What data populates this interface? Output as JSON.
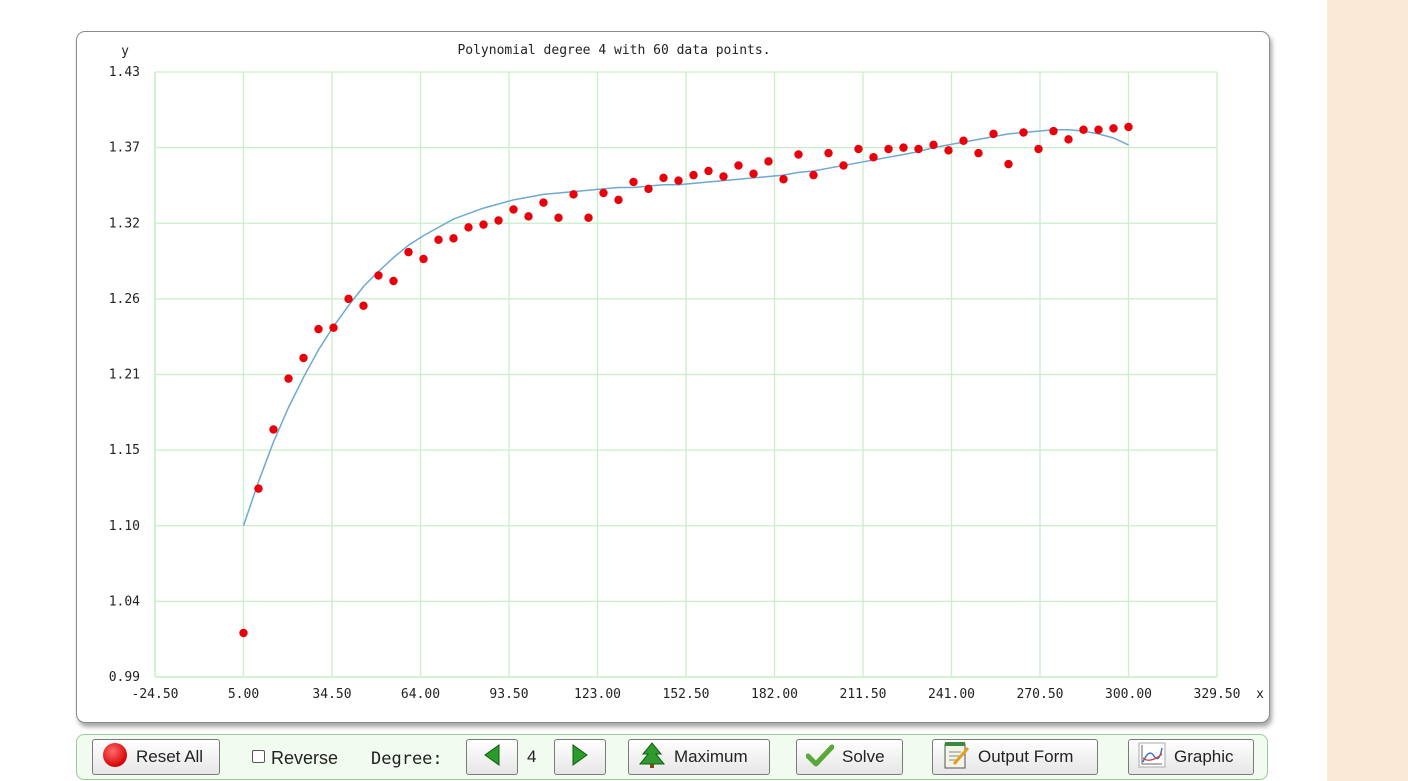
{
  "chart_data": {
    "type": "scatter",
    "title": "Polynomial degree 4 with 60 data points.",
    "xlabel": "x",
    "ylabel": "y",
    "xlim": [
      -24.5,
      329.5
    ],
    "ylim": [
      0.99,
      1.43
    ],
    "x_ticks": [
      "-24.50",
      "5.00",
      "34.50",
      "64.00",
      "93.50",
      "123.00",
      "152.50",
      "182.00",
      "211.50",
      "241.00",
      "270.50",
      "300.00",
      "329.50"
    ],
    "y_ticks": [
      "1.43",
      "1.37",
      "1.32",
      "1.26",
      "1.21",
      "1.15",
      "1.10",
      "1.04",
      "0.99"
    ],
    "grid": true,
    "points_color": "#e8000b",
    "curve_color": "#6fa8d0",
    "grid_color": "#c8efc8",
    "series": [
      {
        "marker": "point",
        "x": [
          5,
          10,
          15,
          20,
          25,
          30,
          35,
          40,
          45,
          50,
          55,
          60,
          65,
          70,
          75,
          80,
          85,
          90,
          95,
          100,
          105,
          110,
          115,
          120,
          125,
          130,
          135,
          140,
          145,
          150,
          155,
          160,
          165,
          170,
          175,
          180,
          185,
          190,
          195,
          200,
          205,
          210,
          215,
          220,
          225,
          230,
          235,
          240,
          245,
          250,
          255,
          260,
          265,
          270,
          275,
          280,
          285,
          290,
          295,
          300
        ],
        "y": [
          1.022,
          1.127,
          1.17,
          1.207,
          1.222,
          1.243,
          1.244,
          1.265,
          1.26,
          1.282,
          1.278,
          1.299,
          1.294,
          1.308,
          1.309,
          1.317,
          1.319,
          1.322,
          1.33,
          1.325,
          1.335,
          1.324,
          1.341,
          1.324,
          1.342,
          1.337,
          1.35,
          1.345,
          1.353,
          1.351,
          1.355,
          1.358,
          1.354,
          1.362,
          1.356,
          1.365,
          1.352,
          1.37,
          1.355,
          1.371,
          1.362,
          1.374,
          1.368,
          1.374,
          1.375,
          1.374,
          1.377,
          1.373,
          1.38,
          1.371,
          1.385,
          1.363,
          1.386,
          1.374,
          1.387,
          1.381,
          1.388,
          1.388,
          1.389,
          1.39
        ]
      },
      {
        "marker": "line",
        "x": [
          5,
          10,
          15,
          20,
          25,
          30,
          35,
          40,
          45,
          50,
          55,
          60,
          65,
          70,
          75,
          80,
          85,
          90,
          95,
          100,
          105,
          110,
          115,
          120,
          125,
          130,
          135,
          140,
          145,
          150,
          155,
          160,
          165,
          170,
          175,
          180,
          185,
          190,
          195,
          200,
          205,
          210,
          215,
          220,
          225,
          230,
          235,
          240,
          245,
          250,
          255,
          260,
          265,
          270,
          275,
          280,
          285,
          290,
          295,
          300
        ],
        "y": [
          1.1,
          1.132,
          1.161,
          1.186,
          1.208,
          1.228,
          1.245,
          1.26,
          1.274,
          1.285,
          1.295,
          1.304,
          1.311,
          1.317,
          1.323,
          1.327,
          1.331,
          1.334,
          1.337,
          1.339,
          1.341,
          1.342,
          1.343,
          1.344,
          1.345,
          1.346,
          1.346,
          1.347,
          1.348,
          1.348,
          1.349,
          1.35,
          1.351,
          1.352,
          1.353,
          1.354,
          1.355,
          1.357,
          1.358,
          1.36,
          1.362,
          1.364,
          1.366,
          1.368,
          1.37,
          1.372,
          1.375,
          1.377,
          1.379,
          1.381,
          1.383,
          1.385,
          1.386,
          1.387,
          1.388,
          1.388,
          1.387,
          1.385,
          1.382,
          1.377
        ]
      }
    ]
  },
  "toolbar": {
    "reset_label": "Reset All",
    "reverse_label": "Reverse",
    "degree_label": "Degree:",
    "degree_value": "4",
    "maximum_label": "Maximum",
    "solve_label": "Solve",
    "output_form_label": "Output Form",
    "graphic_label": "Graphic"
  }
}
